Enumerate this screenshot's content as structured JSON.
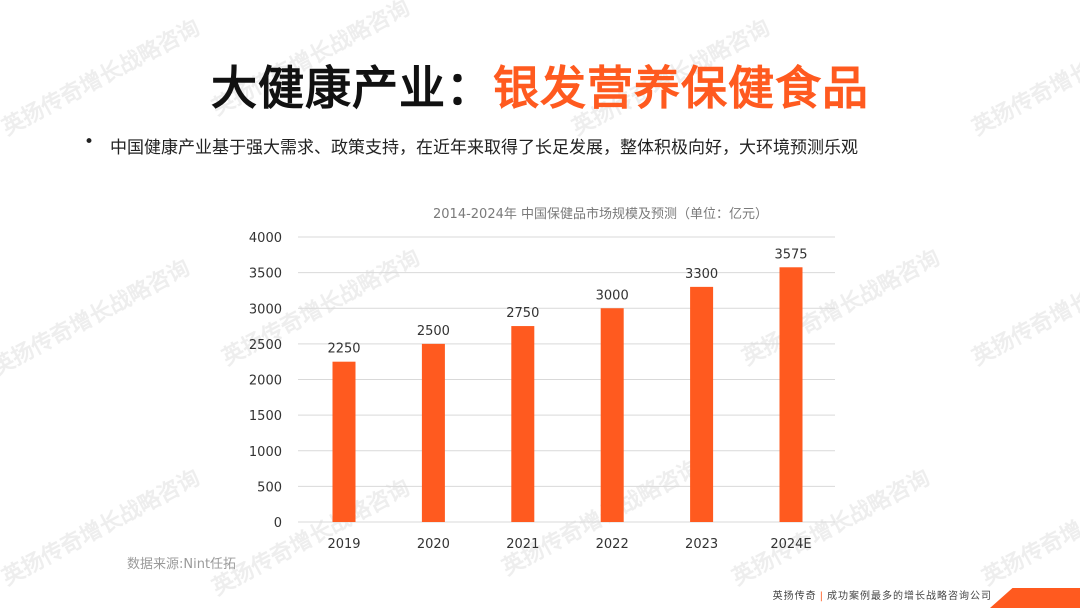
{
  "title": {
    "part1": "大健康产业：",
    "part2": "银发营养保健食品"
  },
  "bullet": {
    "marker": "•",
    "text": "中国健康产业基于强大需求、政策支持，在近年来取得了长足发展，整体积极向好，大环境预测乐观"
  },
  "source": "数据来源:Nint任拓",
  "footer": {
    "brand": "英扬传奇",
    "separator": "|",
    "tagline": "成功案例最多的增长战略咨询公司"
  },
  "watermark": "英扬传奇增长战略咨询",
  "colors": {
    "accent": "#ff5a1f",
    "bar": "#ff5a1f",
    "grid": "#d9d9d9",
    "text": "#222222"
  },
  "chart_data": {
    "type": "bar",
    "title": "2014-2024年 中国保健品市场规模及预测（单位：亿元）",
    "categories": [
      "2019",
      "2020",
      "2021",
      "2022",
      "2023",
      "2024E"
    ],
    "values": [
      2250,
      2500,
      2750,
      3000,
      3300,
      3575
    ],
    "data_labels": [
      "2250",
      "2500",
      "2750",
      "3000",
      "3300",
      "3575"
    ],
    "ylim": [
      0,
      4000
    ],
    "yticks": [
      "0",
      "500",
      "1000",
      "1500",
      "2000",
      "2500",
      "3000",
      "3500",
      "4000"
    ],
    "grid": true,
    "legend": "none"
  }
}
